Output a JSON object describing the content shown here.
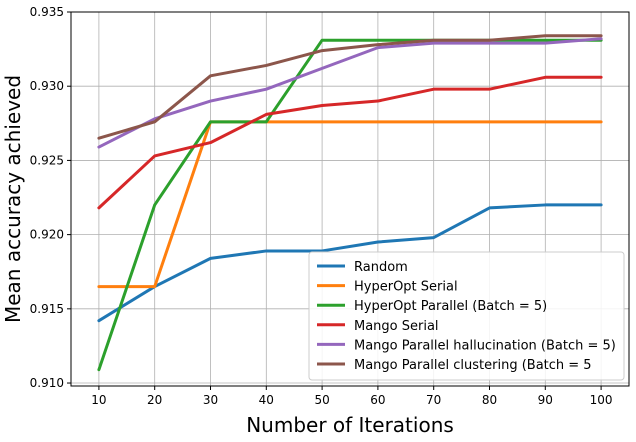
{
  "chart_data": {
    "type": "line",
    "title": "",
    "xlabel": "Number of Iterations",
    "ylabel": "Mean accuracy achieved",
    "x": [
      10,
      20,
      30,
      40,
      50,
      60,
      70,
      80,
      90,
      100
    ],
    "xlim": [
      5,
      105
    ],
    "ylim": [
      0.9098,
      0.935
    ],
    "xticks": [
      10,
      20,
      30,
      40,
      50,
      60,
      70,
      80,
      90,
      100
    ],
    "yticks": [
      "0.910",
      "0.915",
      "0.920",
      "0.925",
      "0.930",
      "0.935"
    ],
    "grid": true,
    "legend_position": "lower-right",
    "series": [
      {
        "name": "Random",
        "color": "#1f77b4",
        "values": [
          0.9142,
          0.9165,
          0.9184,
          0.9189,
          0.9189,
          0.9195,
          0.9198,
          0.9218,
          0.922,
          0.922
        ]
      },
      {
        "name": "HyperOpt Serial",
        "color": "#ff7f0e",
        "values": [
          0.9165,
          0.9165,
          0.9276,
          0.9276,
          0.9276,
          0.9276,
          0.9276,
          0.9276,
          0.9276,
          0.9276
        ]
      },
      {
        "name": "HyperOpt Parallel (Batch = 5)",
        "color": "#2ca02c",
        "values": [
          0.9109,
          0.922,
          0.9276,
          0.9276,
          0.9331,
          0.9331,
          0.9331,
          0.9331,
          0.9331,
          0.9331
        ]
      },
      {
        "name": "Mango Serial",
        "color": "#d62728",
        "values": [
          0.9218,
          0.9253,
          0.9262,
          0.9281,
          0.9287,
          0.929,
          0.9298,
          0.9298,
          0.9306,
          0.9306
        ]
      },
      {
        "name": "Mango Parallel hallucination (Batch = 5)",
        "color": "#9467bd",
        "values": [
          0.9259,
          0.9278,
          0.929,
          0.9298,
          0.9312,
          0.9326,
          0.9329,
          0.9329,
          0.9329,
          0.9332
        ]
      },
      {
        "name": "Mango Parallel clustering (Batch = 5",
        "color": "#8c564b",
        "values": [
          0.9265,
          0.9276,
          0.9307,
          0.9314,
          0.9324,
          0.9328,
          0.9331,
          0.9331,
          0.9334,
          0.9334
        ]
      }
    ]
  }
}
